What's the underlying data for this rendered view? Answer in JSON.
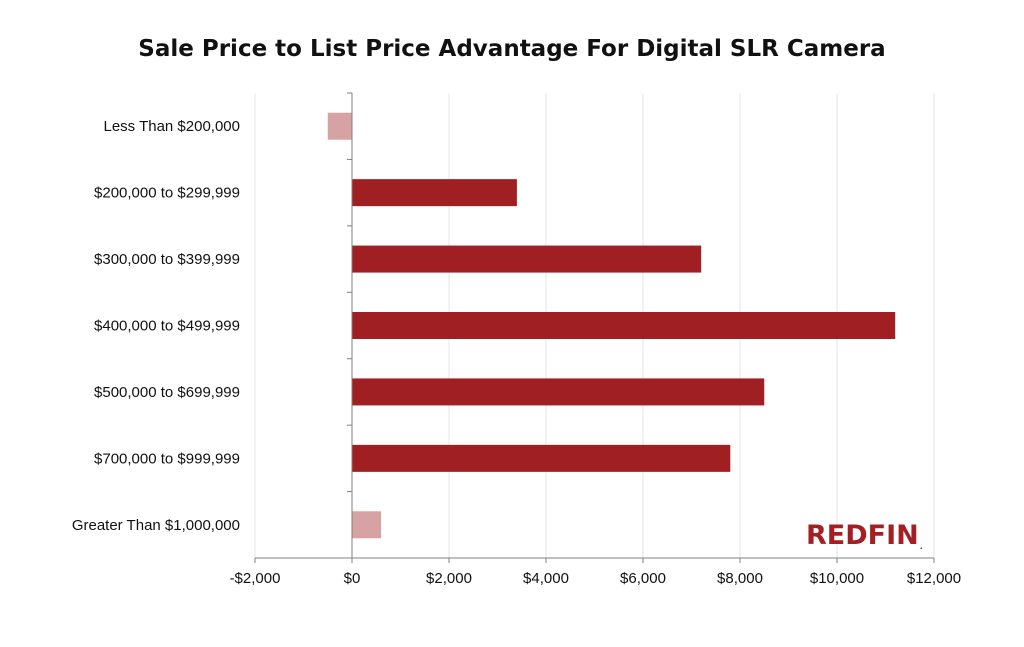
{
  "chart_data": {
    "type": "bar",
    "orientation": "horizontal",
    "title": "Sale Price to List Price Advantage For Digital SLR Camera",
    "xlabel": "",
    "ylabel": "",
    "xlim": [
      -2000,
      12000
    ],
    "x_ticks": [
      -2000,
      0,
      2000,
      4000,
      6000,
      8000,
      10000,
      12000
    ],
    "x_tick_labels": [
      "-$2,000",
      "$0",
      "$2,000",
      "$4,000",
      "$6,000",
      "$8,000",
      "$10,000",
      "$12,000"
    ],
    "categories": [
      "Less Than $200,000",
      "$200,000 to $299,999",
      "$300,000 to $399,999",
      "$400,000 to $499,999",
      "$500,000 to $699,999",
      "$700,000 to $999,999",
      "Greater Than $1,000,000"
    ],
    "values": [
      -500,
      3400,
      7200,
      11200,
      8500,
      7800,
      600
    ],
    "bar_colors": [
      "#d6a2a4",
      "#a01f23",
      "#a01f23",
      "#a01f23",
      "#a01f23",
      "#a01f23",
      "#d6a2a4"
    ],
    "grid": true,
    "legend": "none"
  },
  "brand": {
    "name": "REDFIN",
    "mark": "."
  }
}
